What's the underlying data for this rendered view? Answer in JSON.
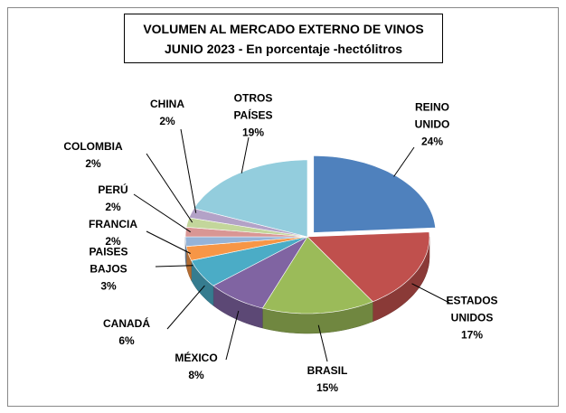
{
  "chart_data": {
    "type": "pie",
    "title": "VOLUMEN AL MERCADO EXTERNO DE VINOS",
    "subtitle": "JUNIO 2023 - En porcentaje -hectólitros",
    "categories": [
      "REINO UNIDO",
      "ESTADOS UNIDOS",
      "BRASIL",
      "MÉXICO",
      "CANADÁ",
      "PAISES BAJOS",
      "FRANCIA",
      "PERÚ",
      "COLOMBIA",
      "CHINA",
      "OTROS PAÍSES"
    ],
    "values": [
      24,
      17,
      15,
      8,
      6,
      3,
      2,
      2,
      2,
      2,
      19
    ],
    "value_labels": [
      "24%",
      "17%",
      "15%",
      "8%",
      "6%",
      "3%",
      "2%",
      "2%",
      "2%",
      "2%",
      "19%"
    ],
    "colors": [
      "#4f81bd",
      "#c0504d",
      "#9bbb59",
      "#8064a2",
      "#4bacc6",
      "#f79646",
      "#95b3d7",
      "#d99694",
      "#c3d69b",
      "#b3a2c7",
      "#93cddd"
    ]
  }
}
